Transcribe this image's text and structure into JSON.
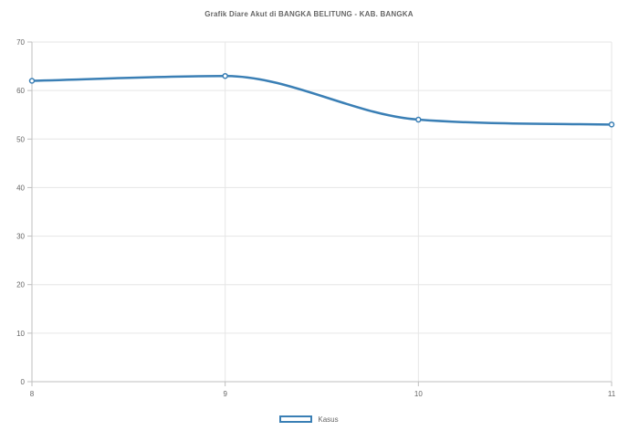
{
  "chart_data": {
    "type": "line",
    "title": "Grafik Diare Akut di BANGKA BELITUNG - KAB. BANGKA",
    "x": [
      8,
      9,
      10,
      11
    ],
    "series": [
      {
        "name": "Kasus",
        "values": [
          62,
          63,
          54,
          53
        ]
      }
    ],
    "ylim": [
      0,
      70
    ],
    "y_ticks": [
      0,
      10,
      20,
      30,
      40,
      50,
      60,
      70
    ],
    "x_ticks": [
      8,
      9,
      10,
      11
    ],
    "xlabel": "",
    "ylabel": "",
    "grid": true,
    "legend": "bottom",
    "colors": {
      "line": "#3a7fb5",
      "grid": "#e6e6e6",
      "axis": "#bfbfbf",
      "text": "#666666"
    }
  }
}
